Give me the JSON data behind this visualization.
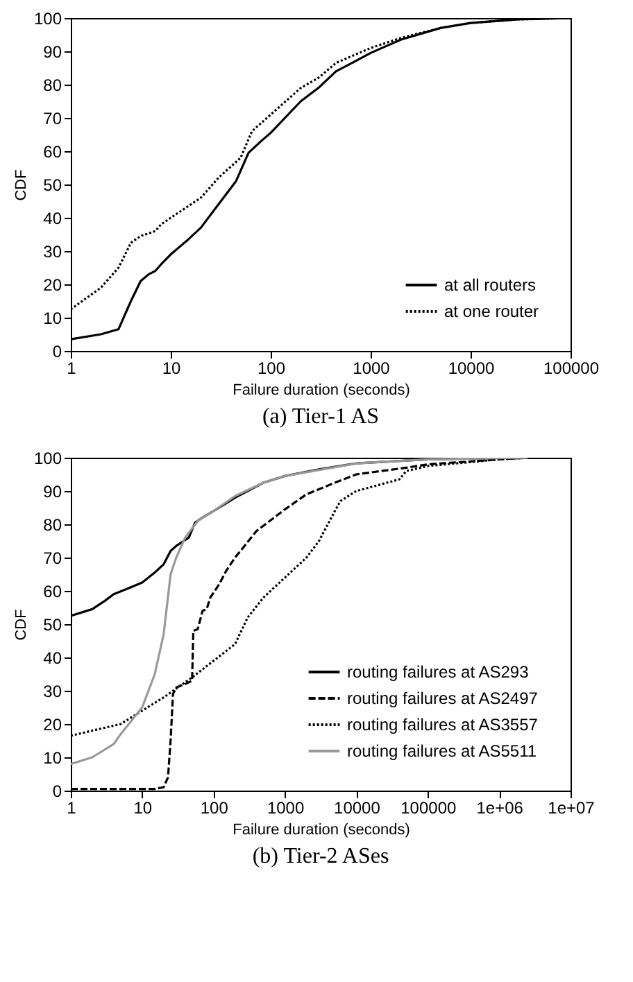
{
  "chart_data": [
    {
      "type": "line",
      "title": "(a) Tier-1 AS",
      "xlabel": "Failure duration (seconds)",
      "ylabel": "CDF",
      "log": "x",
      "legend": "bottom right",
      "xlim": [
        1,
        100000
      ],
      "xticks": [
        1,
        10,
        100,
        1000,
        10000,
        100000
      ],
      "ylim": [
        0,
        100
      ],
      "yticks": [
        0,
        10,
        20,
        30,
        40,
        50,
        60,
        70,
        80,
        90,
        100
      ],
      "series": [
        {
          "name": "at all routers",
          "color": "#000000",
          "line_style": "solid",
          "x": [
            1,
            2,
            3,
            4,
            5,
            6,
            7,
            8,
            10,
            15,
            20,
            30,
            45,
            60,
            80,
            100,
            200,
            300,
            450,
            700,
            1000,
            2000,
            5000,
            10000,
            30000,
            100000
          ],
          "values": [
            3.5,
            5,
            6.5,
            15,
            21,
            23,
            24,
            26,
            29,
            33.5,
            37,
            44,
            51,
            59.5,
            63,
            65.5,
            75,
            79,
            84,
            87,
            89.5,
            93.5,
            97,
            98.5,
            99.6,
            100
          ]
        },
        {
          "name": "at one router",
          "color": "#000000",
          "line_style": "dotted",
          "x": [
            1,
            2,
            3,
            4,
            5,
            7,
            8,
            10,
            20,
            30,
            50,
            65,
            100,
            200,
            300,
            450,
            700,
            1000,
            2000,
            5000,
            10000,
            30000,
            100000
          ],
          "values": [
            12.5,
            19,
            25,
            32.5,
            34.5,
            36,
            38,
            40,
            46,
            52,
            58,
            66,
            71,
            79,
            82,
            86.5,
            89,
            91,
            94,
            97,
            98.5,
            99.6,
            100
          ]
        }
      ]
    },
    {
      "type": "line",
      "title": "(b) Tier-2 ASes",
      "xlabel": "Failure duration (seconds)",
      "ylabel": "CDF",
      "log": "x",
      "legend": "bottom right",
      "xlim": [
        1,
        10000000
      ],
      "xticks": [
        1,
        10,
        100,
        1000,
        10000,
        100000,
        {
          "value": 1000000,
          "label": "1e+06"
        },
        {
          "value": 10000000,
          "label": "1e+07"
        }
      ],
      "ylim": [
        0,
        100
      ],
      "yticks": [
        0,
        10,
        20,
        30,
        40,
        50,
        60,
        70,
        80,
        90,
        100
      ],
      "series": [
        {
          "name": "routing failures at AS293",
          "color": "#000000",
          "line_style": "solid",
          "x": [
            1,
            2,
            3,
            4,
            6,
            10,
            15,
            20,
            25,
            30,
            45,
            55,
            70,
            100,
            200,
            500,
            1000,
            3000,
            10000,
            100000,
            1000000,
            2500000
          ],
          "values": [
            52.5,
            54.5,
            57,
            59,
            60.5,
            62.5,
            65.5,
            68,
            72,
            73.5,
            76,
            80.5,
            82,
            84,
            88,
            92.5,
            94.5,
            96.5,
            98.3,
            99.5,
            99.9,
            100
          ]
        },
        {
          "name": "routing failures at AS2497",
          "color": "#000000",
          "line_style": "dashed",
          "x": [
            1,
            15,
            20,
            23,
            25,
            27,
            30,
            40,
            50,
            52,
            60,
            70,
            80,
            90,
            120,
            150,
            200,
            400,
            1000,
            2000,
            5000,
            10000,
            50000,
            100000,
            1000000,
            2500000
          ],
          "values": [
            0.5,
            0.5,
            1,
            4,
            15,
            29,
            31,
            32,
            33,
            48,
            48.5,
            54,
            54.5,
            58,
            62,
            66,
            70,
            78,
            84.5,
            89,
            92.5,
            95,
            97,
            98,
            99.5,
            100
          ]
        },
        {
          "name": "routing failures at AS3557",
          "color": "#000000",
          "line_style": "dotted",
          "x": [
            1,
            5,
            10,
            20,
            50,
            100,
            200,
            300,
            500,
            1000,
            2000,
            3000,
            5000,
            6000,
            10000,
            40000,
            50000,
            100000,
            1000000,
            2500000
          ],
          "values": [
            16.5,
            20,
            24,
            28,
            34,
            39,
            44,
            52,
            58,
            64,
            70,
            75,
            84,
            87,
            90,
            93.5,
            96,
            97.5,
            99.5,
            100
          ]
        },
        {
          "name": "routing failures at AS5511",
          "color": "#999999",
          "line_style": "solid",
          "x": [
            1,
            2,
            4,
            5,
            10,
            15,
            20,
            25,
            30,
            40,
            60,
            100,
            200,
            500,
            1000,
            10000,
            100000,
            2500000
          ],
          "values": [
            8,
            10,
            14,
            17,
            25,
            35,
            47,
            65,
            70,
            76,
            81,
            84,
            88.5,
            92.5,
            94.5,
            98.3,
            99.5,
            100
          ]
        }
      ]
    }
  ]
}
